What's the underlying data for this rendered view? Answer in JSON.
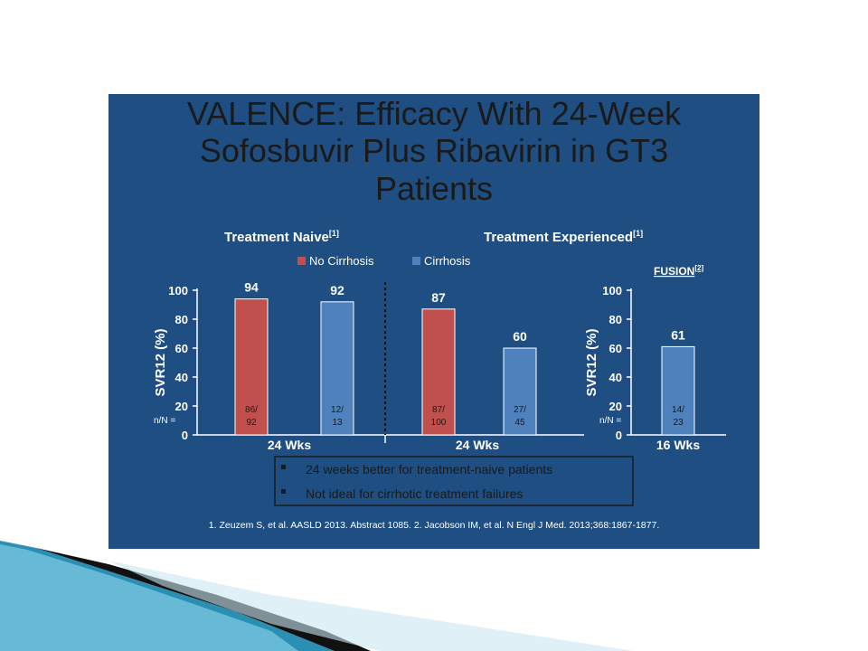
{
  "slide": {
    "title_lines": [
      "VALENCE: Efficacy With 24-Week",
      "Sofosbuvir Plus Ribavirin in GT3",
      "Patients"
    ],
    "group_naive": "Treatment Naive",
    "group_naive_ref": "[1]",
    "group_experienced": "Treatment Experienced",
    "group_experienced_ref": "[1]",
    "fusion_label": "FUSION",
    "fusion_ref": "[2]",
    "nN_label": "n/N =",
    "bullets": [
      "24 weeks better for treatment-naive patients",
      "Not ideal for cirrhotic treatment failures"
    ],
    "footnote": "1. Zeuzem S, et al. AASLD 2013. Abstract 1085. 2. Jacobson IM, et al. N Engl J Med. 2013;368:1867-1877.",
    "colors": {
      "background": "#1f4e82",
      "no_cirrhosis": "#c0504d",
      "cirrhosis": "#4f81bd",
      "bullet_box": "#1a1a1a"
    }
  },
  "chart_data": [
    {
      "type": "bar",
      "ylabel": "SVR12 (%)",
      "ylim": [
        0,
        100
      ],
      "yticks": [
        0,
        20,
        40,
        60,
        80,
        100
      ],
      "legend": [
        "No Cirrhosis",
        "Cirrhosis"
      ],
      "legend_placement": "top",
      "groups": [
        {
          "category": "24 Wks",
          "section": "Treatment Naive",
          "bars": [
            {
              "series": "No Cirrhosis",
              "value": 94,
              "nN": [
                "86/",
                "92"
              ]
            },
            {
              "series": "Cirrhosis",
              "value": 92,
              "nN": [
                "12/",
                "13"
              ]
            }
          ]
        },
        {
          "category": "24 Wks",
          "section": "Treatment Experienced",
          "bars": [
            {
              "series": "No Cirrhosis",
              "value": 87,
              "nN": [
                "87/",
                "100"
              ]
            },
            {
              "series": "Cirrhosis",
              "value": 60,
              "nN": [
                "27/",
                "45"
              ]
            }
          ]
        }
      ]
    },
    {
      "type": "bar",
      "ylabel": "SVR12 (%)",
      "ylim": [
        0,
        100
      ],
      "yticks": [
        0,
        20,
        40,
        60,
        80,
        100
      ],
      "groups": [
        {
          "category": "16 Wks",
          "section": "FUSION",
          "bars": [
            {
              "series": "Cirrhosis",
              "value": 61,
              "nN": [
                "14/",
                "23"
              ]
            }
          ]
        }
      ]
    }
  ]
}
